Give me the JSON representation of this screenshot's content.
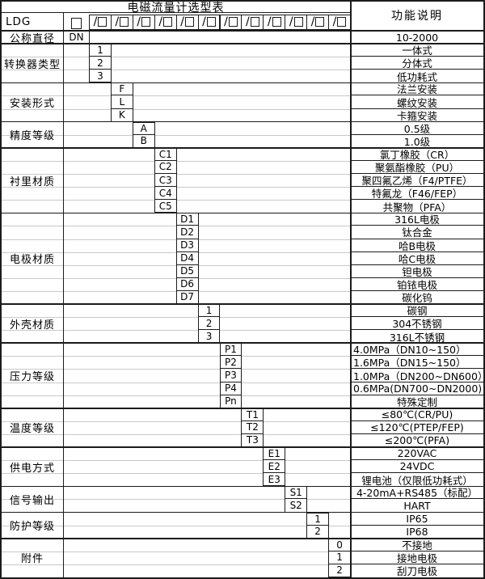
{
  "title": "电磁流量计选型表",
  "header": {
    "function_col": "功能说明",
    "model_prefix": "LDG",
    "plain_box_count": 1,
    "slash_box_count": 12
  },
  "sections": [
    {
      "label": "公称直径",
      "rows": [
        {
          "code": "DN",
          "desc": "10-2000"
        }
      ]
    },
    {
      "label": "转换器类型",
      "rows": [
        {
          "code": "1",
          "desc": "一体式"
        },
        {
          "code": "2",
          "desc": "分体式"
        },
        {
          "code": "3",
          "desc": "低功耗式"
        }
      ]
    },
    {
      "label": "安装形式",
      "rows": [
        {
          "code": "F",
          "desc": "法兰安装"
        },
        {
          "code": "L",
          "desc": "螺纹安装"
        },
        {
          "code": "K",
          "desc": "卡箍安装"
        }
      ]
    },
    {
      "label": "精度等级",
      "rows": [
        {
          "code": "A",
          "desc": "0.5级"
        },
        {
          "code": "B",
          "desc": "1.0级"
        }
      ]
    },
    {
      "label": "衬里材质",
      "rows": [
        {
          "code": "C1",
          "desc": "氯丁橡胶（CR）"
        },
        {
          "code": "C2",
          "desc": "聚氨酯橡胶（PU）"
        },
        {
          "code": "C3",
          "desc": "聚四氟乙烯（F4/PTFE）"
        },
        {
          "code": "C4",
          "desc": "特氟龙（F46/FEP）"
        },
        {
          "code": "C5",
          "desc": "共聚物（PFA）"
        }
      ]
    },
    {
      "label": "电极材质",
      "rows": [
        {
          "code": "D1",
          "desc": "316L电极"
        },
        {
          "code": "D2",
          "desc": "钛合金"
        },
        {
          "code": "D3",
          "desc": "哈B电极"
        },
        {
          "code": "D4",
          "desc": "哈C电极"
        },
        {
          "code": "D5",
          "desc": "钽电极"
        },
        {
          "code": "D6",
          "desc": "铂铱电极"
        },
        {
          "code": "D7",
          "desc": "碳化钨"
        }
      ]
    },
    {
      "label": "外壳材质",
      "rows": [
        {
          "code": "1",
          "desc": "碳钢"
        },
        {
          "code": "2",
          "desc": "304不锈钢"
        },
        {
          "code": "3",
          "desc": "316L不锈钢"
        }
      ]
    },
    {
      "label": "压力等级",
      "rows": [
        {
          "code": "P1",
          "desc": "4.0MPa（DN10~150）",
          "align": "left"
        },
        {
          "code": "P2",
          "desc": "1.6MPa（DN15~150）",
          "align": "left"
        },
        {
          "code": "P3",
          "desc": "1.0MPa（DN200~DN600）",
          "align": "left"
        },
        {
          "code": "P4",
          "desc": "0.6MPa(DN700~DN2000)",
          "align": "left"
        },
        {
          "code": "Pn",
          "desc": "特殊定制"
        }
      ]
    },
    {
      "label": "温度等级",
      "rows": [
        {
          "code": "T1",
          "desc": "≤80℃(CR/PU)"
        },
        {
          "code": "T2",
          "desc": "≤120℃(PTEP/FEP)"
        },
        {
          "code": "T3",
          "desc": "≤200℃(PFA)"
        }
      ]
    },
    {
      "label": "供电方式",
      "rows": [
        {
          "code": "E1",
          "desc": "220VAC"
        },
        {
          "code": "E2",
          "desc": "24VDC"
        },
        {
          "code": "E3",
          "desc": "锂电池（仅限低功耗式）"
        }
      ]
    },
    {
      "label": "信号输出",
      "rows": [
        {
          "code": "S1",
          "desc": "4-20mA+RS485（标配）"
        },
        {
          "code": "S2",
          "desc": "HART"
        }
      ]
    },
    {
      "label": "防护等级",
      "rows": [
        {
          "code": "1",
          "desc": "IP65"
        },
        {
          "code": "2",
          "desc": "IP68"
        }
      ]
    },
    {
      "label": "附件",
      "rows": [
        {
          "code": "0",
          "desc": "不接地"
        },
        {
          "code": "1",
          "desc": "接地电极"
        },
        {
          "code": "2",
          "desc": "刮刀电极"
        }
      ]
    }
  ],
  "colors": {
    "border": "#1b1b1b",
    "grid_light": "#c9c9c9",
    "background": "#ffffff",
    "text": "#000000"
  }
}
